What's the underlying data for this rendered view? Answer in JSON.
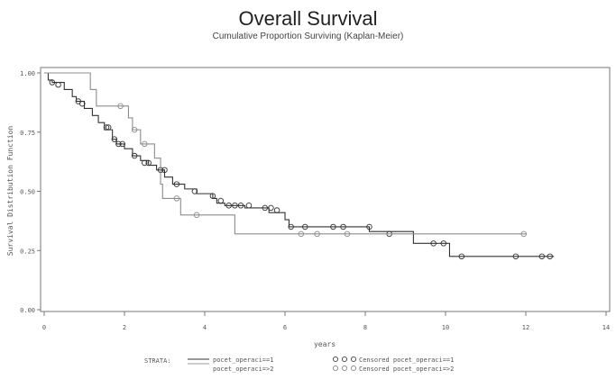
{
  "chart_data": {
    "type": "line",
    "subtype": "kaplan-meier step",
    "title": "Overall Survival",
    "subtitle": "Cumulative Proportion Surviving (Kaplan-Meier)",
    "xlabel": "years",
    "ylabel": "Survival Distribution Function",
    "xlim": [
      0,
      14
    ],
    "ylim": [
      0,
      1
    ],
    "xticks": [
      "0",
      "2",
      "4",
      "6",
      "8",
      "10",
      "12",
      "14"
    ],
    "yticks": [
      "0.00",
      "0.25",
      "0.50",
      "0.75",
      "1.00"
    ],
    "grid": false,
    "legend": {
      "placement": "bottom",
      "strata_label": "STRATA:",
      "entries": [
        {
          "name": "pocet_operaci==1",
          "censored_label": "Censored pocet_operaci==1"
        },
        {
          "name": "pocet_operaci=>2",
          "censored_label": "Censored pocet_operaci=>2"
        }
      ]
    },
    "series": [
      {
        "name": "pocet_operaci==1",
        "color": "#333333",
        "steps": [
          [
            0,
            1.0
          ],
          [
            0.1,
            0.97
          ],
          [
            0.2,
            0.96
          ],
          [
            0.5,
            0.93
          ],
          [
            0.7,
            0.9
          ],
          [
            0.8,
            0.88
          ],
          [
            1.0,
            0.85
          ],
          [
            1.2,
            0.82
          ],
          [
            1.35,
            0.79
          ],
          [
            1.5,
            0.76
          ],
          [
            1.7,
            0.72
          ],
          [
            1.8,
            0.7
          ],
          [
            2.0,
            0.68
          ],
          [
            2.2,
            0.65
          ],
          [
            2.4,
            0.63
          ],
          [
            2.6,
            0.61
          ],
          [
            2.8,
            0.59
          ],
          [
            3.0,
            0.56
          ],
          [
            3.2,
            0.53
          ],
          [
            3.5,
            0.51
          ],
          [
            3.8,
            0.49
          ],
          [
            4.2,
            0.47
          ],
          [
            4.3,
            0.45
          ],
          [
            4.5,
            0.44
          ],
          [
            5.0,
            0.43
          ],
          [
            5.6,
            0.41
          ],
          [
            6.0,
            0.38
          ],
          [
            6.1,
            0.35
          ],
          [
            8.1,
            0.33
          ],
          [
            9.2,
            0.28
          ],
          [
            10.1,
            0.225
          ],
          [
            12.7,
            0.225
          ]
        ],
        "censored": [
          [
            0.2,
            0.96
          ],
          [
            0.35,
            0.95
          ],
          [
            0.85,
            0.88
          ],
          [
            0.95,
            0.87
          ],
          [
            1.55,
            0.77
          ],
          [
            1.6,
            0.77
          ],
          [
            1.75,
            0.72
          ],
          [
            1.85,
            0.7
          ],
          [
            1.95,
            0.7
          ],
          [
            2.25,
            0.65
          ],
          [
            2.5,
            0.62
          ],
          [
            2.6,
            0.62
          ],
          [
            2.9,
            0.59
          ],
          [
            3.0,
            0.59
          ],
          [
            3.3,
            0.53
          ],
          [
            3.75,
            0.5
          ],
          [
            4.2,
            0.48
          ],
          [
            4.4,
            0.46
          ],
          [
            4.6,
            0.44
          ],
          [
            4.75,
            0.44
          ],
          [
            4.9,
            0.44
          ],
          [
            5.1,
            0.44
          ],
          [
            5.5,
            0.43
          ],
          [
            5.65,
            0.43
          ],
          [
            5.8,
            0.42
          ],
          [
            6.15,
            0.35
          ],
          [
            6.5,
            0.35
          ],
          [
            7.2,
            0.35
          ],
          [
            7.45,
            0.35
          ],
          [
            8.1,
            0.35
          ],
          [
            8.6,
            0.32
          ],
          [
            9.7,
            0.28
          ],
          [
            9.95,
            0.28
          ],
          [
            10.4,
            0.225
          ],
          [
            11.75,
            0.225
          ],
          [
            12.4,
            0.225
          ],
          [
            12.6,
            0.225
          ]
        ]
      },
      {
        "name": "pocet_operaci=>2",
        "color": "#8c8c8c",
        "steps": [
          [
            0,
            1.0
          ],
          [
            1.15,
            0.93
          ],
          [
            1.3,
            0.86
          ],
          [
            2.1,
            0.81
          ],
          [
            2.2,
            0.76
          ],
          [
            2.4,
            0.7
          ],
          [
            2.75,
            0.64
          ],
          [
            2.9,
            0.53
          ],
          [
            2.95,
            0.47
          ],
          [
            3.4,
            0.4
          ],
          [
            4.75,
            0.32
          ],
          [
            12.0,
            0.32
          ]
        ],
        "censored": [
          [
            1.9,
            0.86
          ],
          [
            2.25,
            0.76
          ],
          [
            2.5,
            0.7
          ],
          [
            3.3,
            0.47
          ],
          [
            3.8,
            0.4
          ],
          [
            6.4,
            0.32
          ],
          [
            6.8,
            0.32
          ],
          [
            7.55,
            0.32
          ],
          [
            11.95,
            0.32
          ]
        ]
      }
    ]
  }
}
